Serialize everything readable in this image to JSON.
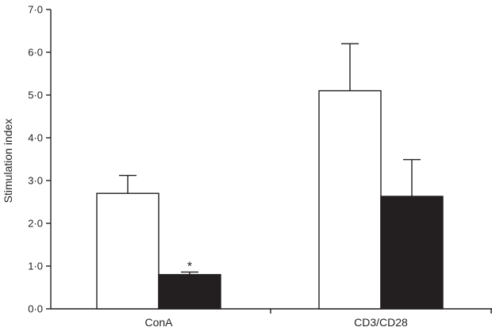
{
  "chart_data": {
    "type": "bar",
    "title": "",
    "xlabel": "",
    "ylabel": "Stimulation index",
    "ylim": [
      0,
      7
    ],
    "yticks": [
      0,
      1,
      2,
      3,
      4,
      5,
      6,
      7
    ],
    "ytick_labels": [
      "0·0",
      "1·0",
      "2·0",
      "3·0",
      "4·0",
      "5·0",
      "6·0",
      "7·0"
    ],
    "categories": [
      "ConA",
      "CD3/CD28"
    ],
    "series": [
      {
        "values": [
          2.7,
          5.1
        ],
        "errors": [
          0.42,
          1.1
        ],
        "fill": "#ffffff",
        "stroke": "#231f20"
      },
      {
        "values": [
          0.8,
          2.63
        ],
        "errors": [
          0.06,
          0.86
        ],
        "fill": "#231f20",
        "stroke": "#231f20"
      }
    ],
    "annotations": [
      {
        "category": 0,
        "series": 1,
        "text": "*"
      }
    ],
    "grid": false,
    "legend": "none"
  }
}
